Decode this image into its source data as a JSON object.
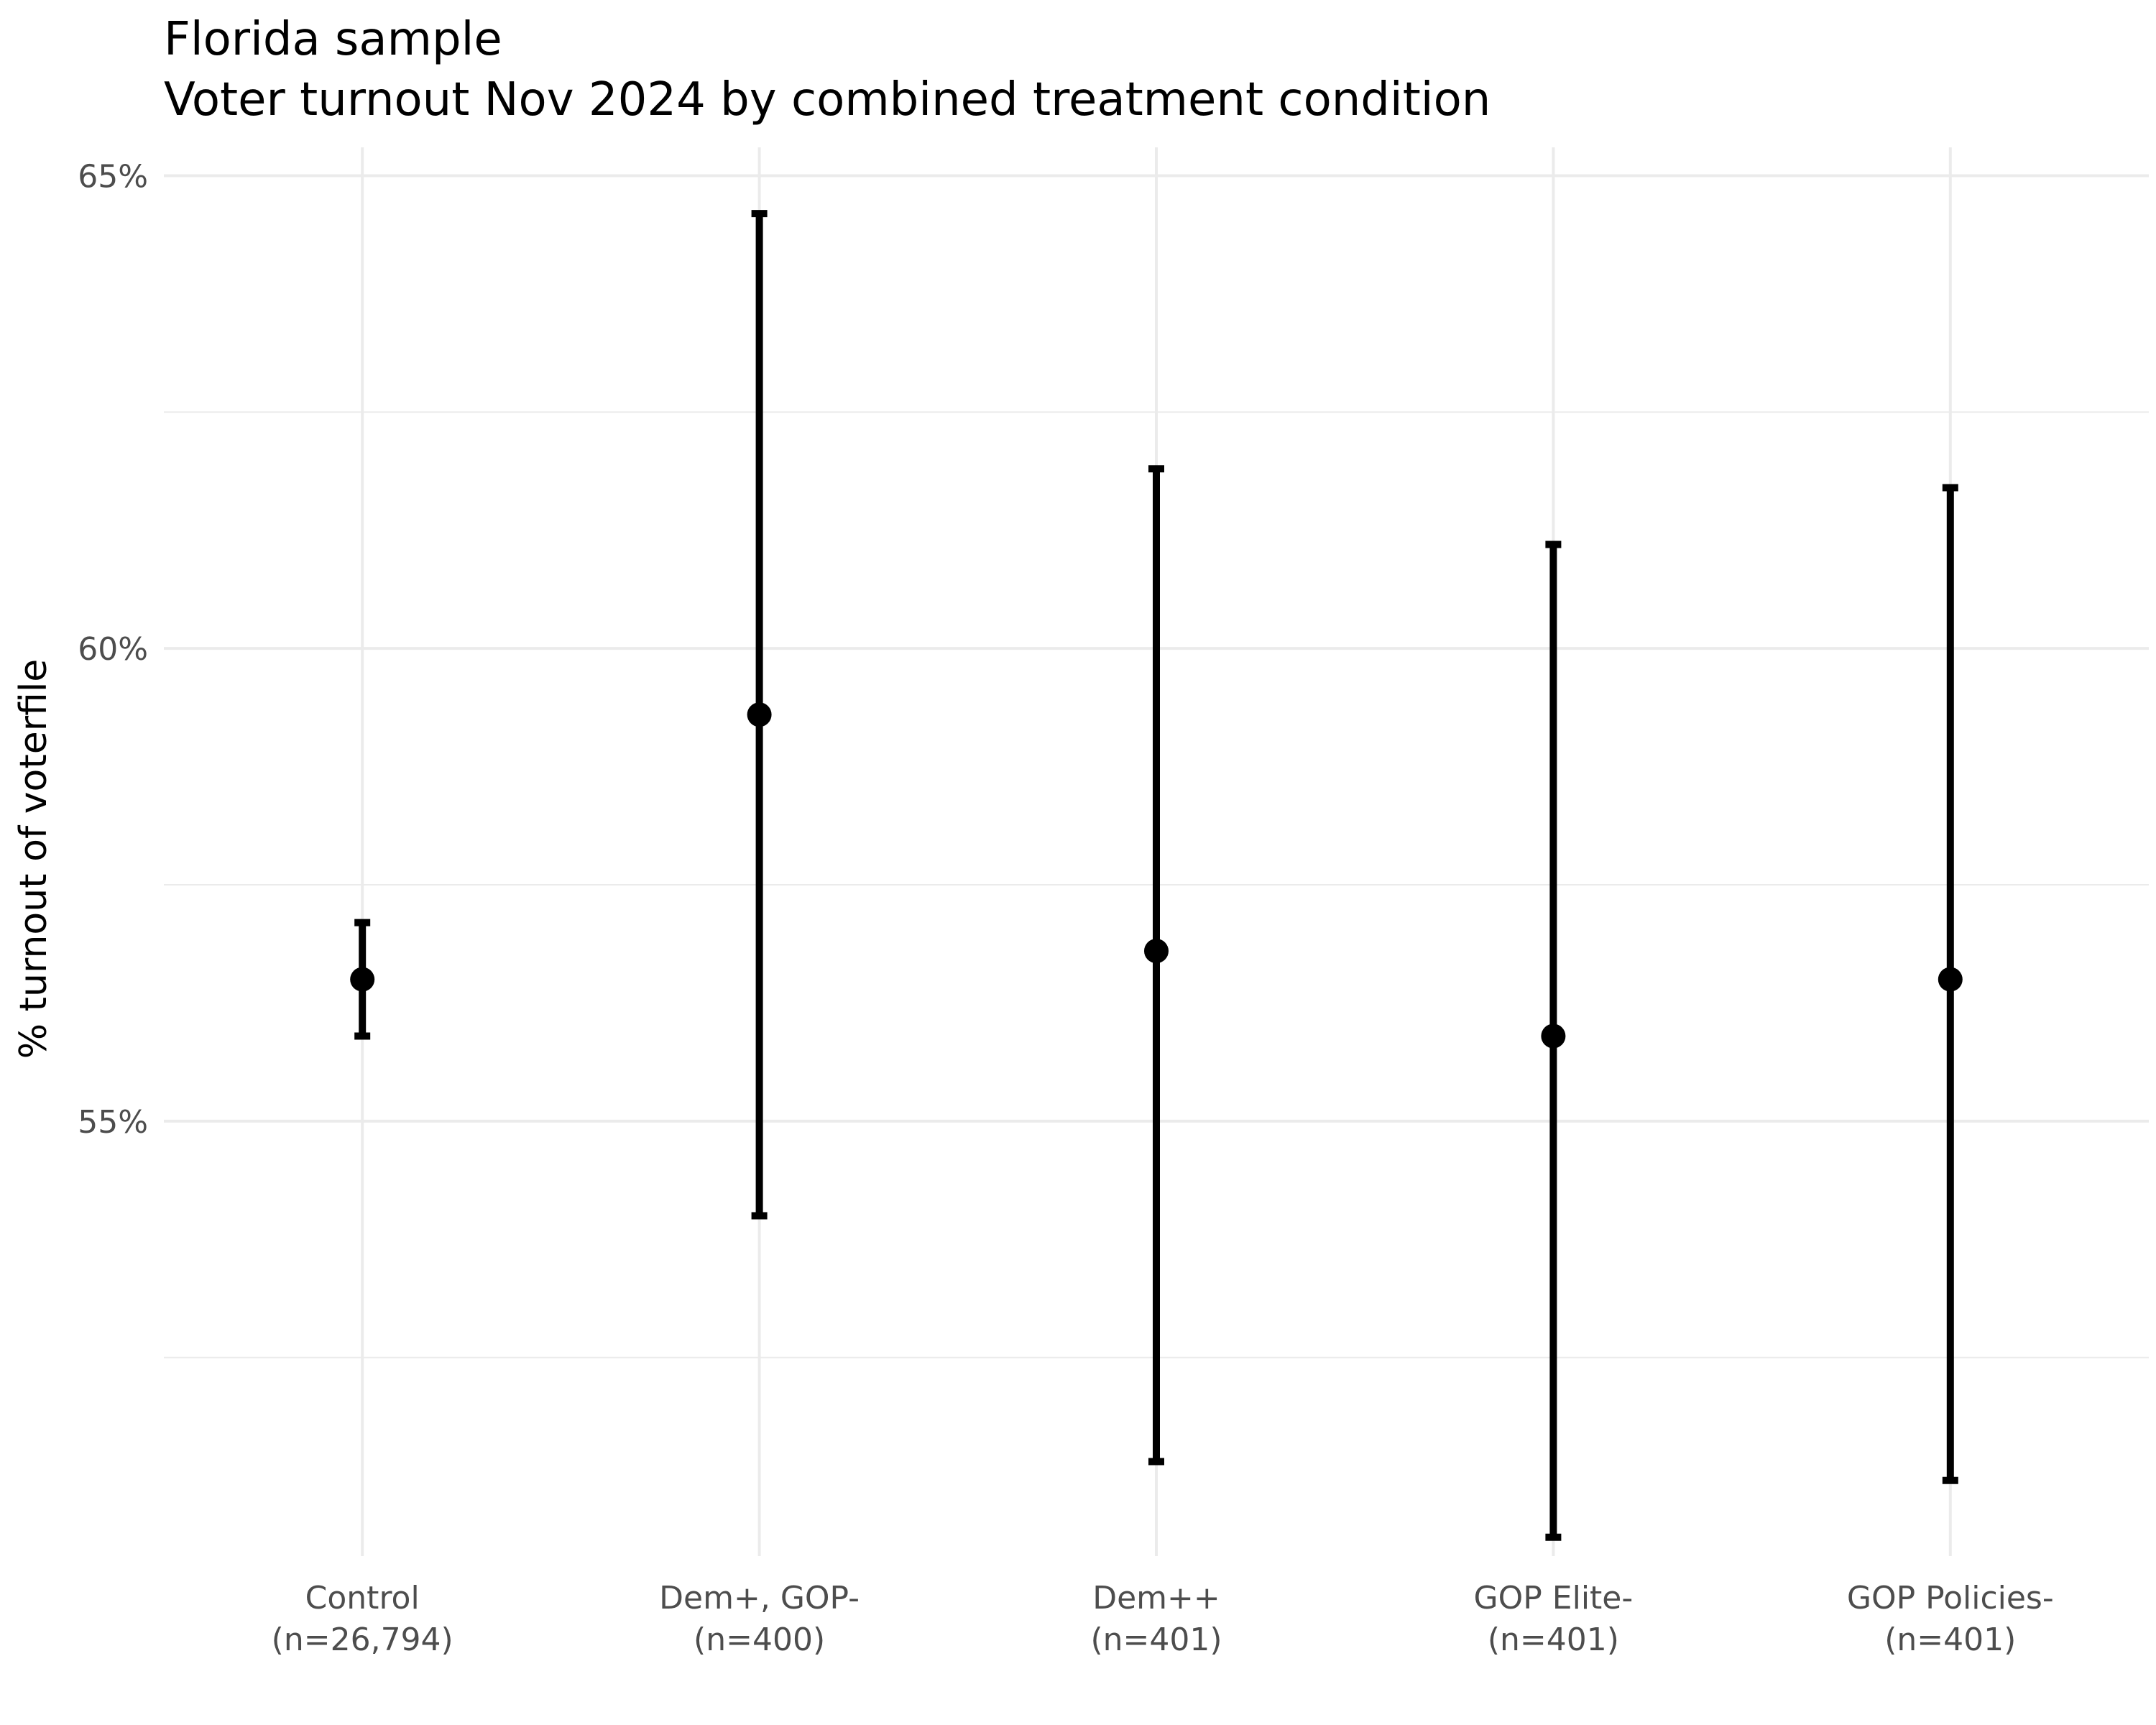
{
  "chart_data": {
    "type": "errorbar",
    "title": "Florida sample",
    "subtitle": "Voter turnout Nov 2024 by combined treatment condition",
    "xlabel": "",
    "ylabel": "% turnout of voterfile",
    "ylim": [
      50.4,
      65.3
    ],
    "y_ticks": [
      55,
      60,
      65
    ],
    "y_tick_labels": [
      "55%",
      "60%",
      "65%"
    ],
    "grid": true,
    "categories": [
      {
        "label": "Control",
        "n_label": "(n=26,794)"
      },
      {
        "label": "Dem+, GOP-",
        "n_label": "(n=400)"
      },
      {
        "label": "Dem++",
        "n_label": "(n=401)"
      },
      {
        "label": "GOP Elite-",
        "n_label": "(n=401)"
      },
      {
        "label": "GOP Policies-",
        "n_label": "(n=401)"
      }
    ],
    "series": [
      {
        "estimate": [
          56.5,
          59.3,
          56.8,
          55.9,
          56.5
        ],
        "lower": [
          55.9,
          54.0,
          51.4,
          50.6,
          51.2
        ],
        "upper": [
          57.1,
          64.6,
          61.9,
          61.1,
          61.7
        ]
      }
    ],
    "colors": {
      "marks": "#000000",
      "grid": "#ebebeb",
      "tick_text": "#4d4d4d"
    }
  }
}
